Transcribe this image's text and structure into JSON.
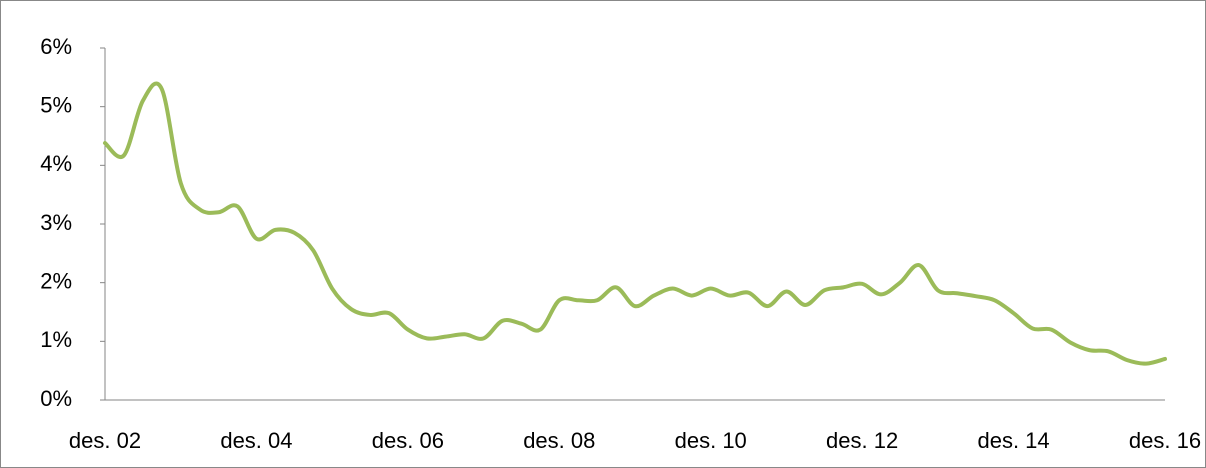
{
  "chart_data": {
    "type": "line",
    "categories": [
      "des. 02",
      null,
      null,
      null,
      null,
      null,
      null,
      null,
      "des. 04",
      null,
      null,
      null,
      null,
      null,
      null,
      null,
      "des. 06",
      null,
      null,
      null,
      null,
      null,
      null,
      null,
      "des. 08",
      null,
      null,
      null,
      null,
      null,
      null,
      null,
      "des. 10",
      null,
      null,
      null,
      null,
      null,
      null,
      null,
      "des. 12",
      null,
      null,
      null,
      null,
      null,
      null,
      null,
      "des. 14",
      null,
      null,
      null,
      null,
      null,
      null,
      null,
      "des. 16"
    ],
    "series": [
      {
        "color": "#9bbb59",
        "values": [
          4.38,
          4.17,
          5.1,
          5.3,
          3.7,
          3.25,
          3.2,
          3.3,
          2.75,
          2.9,
          2.85,
          2.55,
          1.9,
          1.55,
          1.45,
          1.48,
          1.2,
          1.05,
          1.08,
          1.12,
          1.05,
          1.35,
          1.3,
          1.2,
          1.7,
          1.7,
          1.7,
          1.92,
          1.6,
          1.78,
          1.9,
          1.78,
          1.9,
          1.78,
          1.83,
          1.6,
          1.85,
          1.62,
          1.87,
          1.92,
          1.98,
          1.8,
          2.0,
          2.3,
          1.87,
          1.82,
          1.77,
          1.7,
          1.48,
          1.22,
          1.2,
          0.98,
          0.85,
          0.83,
          0.68,
          0.62,
          0.7
        ]
      }
    ],
    "ylim": [
      0,
      6
    ],
    "yticks": [
      {
        "value": 0,
        "label": "0%"
      },
      {
        "value": 1,
        "label": "1%"
      },
      {
        "value": 2,
        "label": "2%"
      },
      {
        "value": 3,
        "label": "3%"
      },
      {
        "value": 4,
        "label": "4%"
      },
      {
        "value": 5,
        "label": "5%"
      },
      {
        "value": 6,
        "label": "6%"
      }
    ]
  }
}
